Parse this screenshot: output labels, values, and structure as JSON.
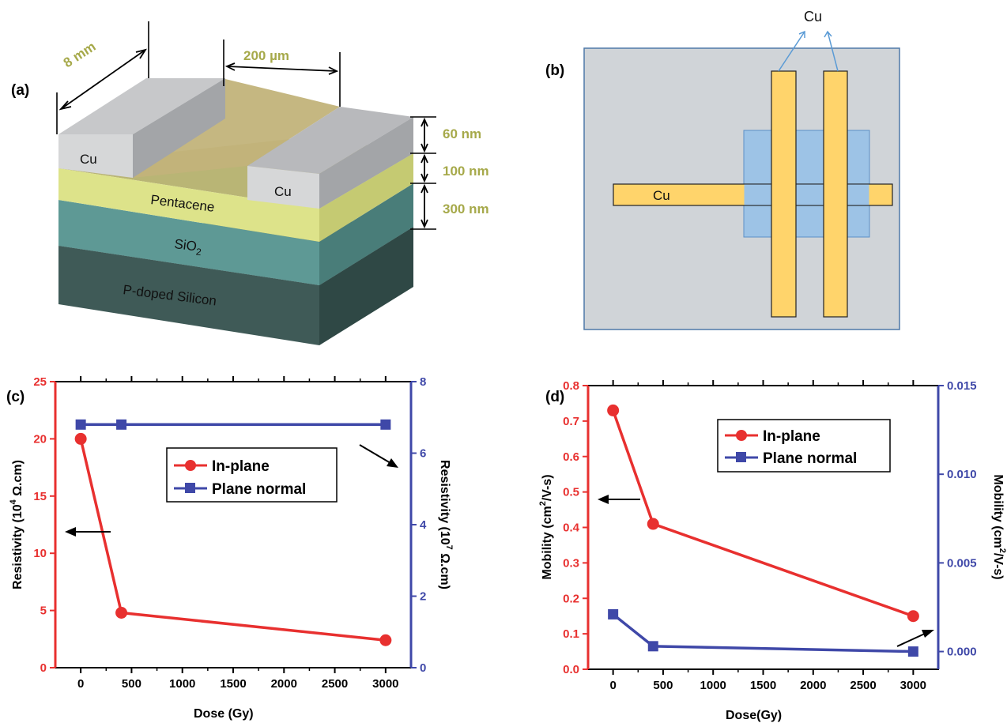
{
  "panels": {
    "a": {
      "label": "(a)",
      "dims": {
        "width": "8 mm",
        "gap": "200 µm",
        "cu_thickness": "60 nm",
        "pentacene_thickness": "100 nm",
        "sio2_thickness": "300 nm"
      },
      "layers": {
        "cu_left": "Cu",
        "cu_right": "Cu",
        "pentacene": "Pentacene",
        "sio2_main": "SiO",
        "sio2_sub": "2",
        "silicon": "P-doped Silicon"
      }
    },
    "b": {
      "label": "(b)",
      "cu_top": "Cu",
      "cu_strip": "Cu"
    },
    "c": {
      "label": "(c)"
    },
    "d": {
      "label": "(d)"
    }
  },
  "colors": {
    "red": "#e8302f",
    "blue": "#3f48a8",
    "cu_fill": "#ffd46b",
    "substrate": "#d0d4d8",
    "channel": "#9dc3e6",
    "dim_text": "#a6a94a"
  },
  "chart_data": [
    {
      "panel": "c",
      "type": "line",
      "title": "",
      "xlabel": "Dose (Gy)",
      "xlim": [
        -250,
        3250
      ],
      "xticks": [
        0,
        500,
        1000,
        1500,
        2000,
        2500,
        3000
      ],
      "ylabel_left": "Resistivity (10",
      "ylabel_left_sup": "4",
      "ylabel_left_end": " Ω.cm)",
      "ylim_left": [
        0,
        25
      ],
      "yticks_left": [
        0,
        5,
        10,
        15,
        20,
        25
      ],
      "ylabel_right": "Resistivity (10",
      "ylabel_right_sup": "7",
      "ylabel_right_end": " Ω.cm)",
      "ylim_right": [
        0,
        8
      ],
      "yticks_right": [
        0,
        2,
        4,
        6,
        8
      ],
      "legend_position": "center",
      "series": [
        {
          "name": "In-plane",
          "axis": "left",
          "marker": "circle",
          "x": [
            0,
            400,
            3000
          ],
          "y": [
            20,
            4.8,
            2.4
          ]
        },
        {
          "name": "Plane normal",
          "axis": "right",
          "marker": "square",
          "x": [
            0,
            400,
            3000
          ],
          "y": [
            6.8,
            6.8,
            6.8
          ]
        }
      ]
    },
    {
      "panel": "d",
      "type": "line",
      "title": "",
      "xlabel": "Dose(Gy)",
      "xlim": [
        -250,
        3250
      ],
      "xticks": [
        0,
        500,
        1000,
        1500,
        2000,
        2500,
        3000
      ],
      "ylabel_left": "Mobility (cm",
      "ylabel_left_sup": "2",
      "ylabel_left_end": "/V-s)",
      "ylim_left": [
        0,
        0.8
      ],
      "yticks_left": [
        "0.0",
        "0.1",
        "0.2",
        "0.3",
        "0.4",
        "0.5",
        "0.6",
        "0.7",
        "0.8"
      ],
      "ylabel_right": "Mobility (cm",
      "ylabel_right_sup": "2",
      "ylabel_right_end": "/V-s)",
      "ylim_right": [
        -0.001,
        0.015
      ],
      "yticks_right": [
        "0.000",
        "0.005",
        "0.010",
        "0.015"
      ],
      "legend_position": "top-center",
      "series": [
        {
          "name": "In-plane",
          "axis": "left",
          "marker": "circle",
          "x": [
            0,
            400,
            3000
          ],
          "y": [
            0.73,
            0.41,
            0.15
          ]
        },
        {
          "name": "Plane normal",
          "axis": "right",
          "marker": "square",
          "x": [
            0,
            400,
            3000
          ],
          "y": [
            0.0021,
            0.0003,
            0.0
          ]
        }
      ]
    }
  ]
}
